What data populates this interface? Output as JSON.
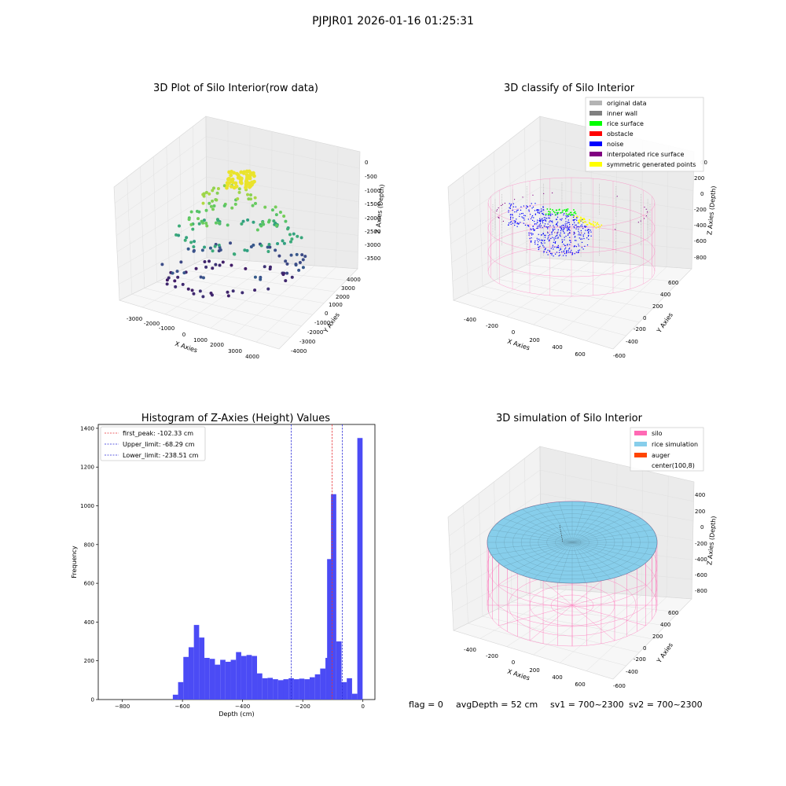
{
  "figure_title": "PJPJR01 2026-01-16 01:25:31",
  "status": {
    "flag": "flag = 0",
    "avg_depth": "avgDepth = 52 cm",
    "sv1": "sv1 = 700~2300",
    "sv2": "sv2 = 700~2300"
  },
  "colors": {
    "histogram_bar": "#4b4bf5",
    "first_peak_line": "#e8343a",
    "limit_lines": "#2f2fd9",
    "silo": "#ff69b4",
    "rice_simulation": "#87ceeb",
    "auger": "#ff4500",
    "original_data": "#b4b4b4",
    "inner_wall": "#808080",
    "rice_surface": "#00ff00",
    "obstacle": "#ff0000",
    "noise": "#0000ff",
    "interpolated_rice_surface": "#800080",
    "symmetric_generated_points": "#ffff00"
  },
  "chart_data": [
    {
      "type": "scatter",
      "title": "3D Plot of Silo Interior(row data)",
      "xlabel": "X Axies",
      "ylabel": "Y Axies",
      "zlabel": "Z Axies (Depth)",
      "x_ticks": [
        "-3000",
        "-2000",
        "-1000",
        "0",
        "1000",
        "2000",
        "3000",
        "4000"
      ],
      "y_ticks": [
        "-4000",
        "-3000",
        "-2000",
        "-1000",
        "0",
        "1000",
        "2000",
        "3000",
        "4000"
      ],
      "z_ticks": [
        "0",
        "-500",
        "-1000",
        "-1500",
        "-2000",
        "-2500",
        "-3000",
        "-3500"
      ]
    },
    {
      "type": "scatter",
      "title": "3D classify of Silo Interior",
      "xlabel": "X Axies",
      "ylabel": "Y Axies",
      "zlabel": "Z Axies (Depth)",
      "x_ticks": [
        "-400",
        "-200",
        "0",
        "200",
        "400",
        "600"
      ],
      "y_ticks": [
        "-600",
        "-400",
        "-200",
        "0",
        "200",
        "400",
        "600"
      ],
      "z_ticks": [
        "200",
        "0",
        "-200",
        "-400",
        "-600",
        "-800"
      ],
      "z_top_tick_partial": "00",
      "legend": [
        "original data",
        "inner wall",
        "rice surface",
        "obstacle",
        "noise",
        "interpolated rice surface",
        "symmetric generated points"
      ]
    },
    {
      "type": "bar",
      "title": "Histogram of Z-Axies (Height) Values",
      "xlabel": "Depth (cm)",
      "ylabel": "Frequency",
      "xlim": [
        -880,
        40
      ],
      "ylim": [
        0,
        1420
      ],
      "x_ticks": [
        -800,
        -600,
        -400,
        -200,
        0
      ],
      "y_ticks": [
        0,
        200,
        400,
        600,
        800,
        1000,
        1200,
        1400
      ],
      "bin_width": 17.5,
      "bins": [
        {
          "x0": -632,
          "v": 25
        },
        {
          "x0": -614.5,
          "v": 90
        },
        {
          "x0": -597,
          "v": 220
        },
        {
          "x0": -579.5,
          "v": 270
        },
        {
          "x0": -562,
          "v": 385
        },
        {
          "x0": -544.5,
          "v": 320
        },
        {
          "x0": -527,
          "v": 215
        },
        {
          "x0": -509.5,
          "v": 210
        },
        {
          "x0": -492,
          "v": 180
        },
        {
          "x0": -474.5,
          "v": 205
        },
        {
          "x0": -457,
          "v": 195
        },
        {
          "x0": -439.5,
          "v": 205
        },
        {
          "x0": -422,
          "v": 245
        },
        {
          "x0": -404.5,
          "v": 225
        },
        {
          "x0": -387,
          "v": 230
        },
        {
          "x0": -369.5,
          "v": 225
        },
        {
          "x0": -352,
          "v": 135
        },
        {
          "x0": -334.5,
          "v": 110
        },
        {
          "x0": -317,
          "v": 112
        },
        {
          "x0": -299.5,
          "v": 105
        },
        {
          "x0": -282,
          "v": 100
        },
        {
          "x0": -264.5,
          "v": 105
        },
        {
          "x0": -247,
          "v": 110
        },
        {
          "x0": -229.5,
          "v": 105
        },
        {
          "x0": -212,
          "v": 108
        },
        {
          "x0": -194.5,
          "v": 105
        },
        {
          "x0": -177,
          "v": 115
        },
        {
          "x0": -159.5,
          "v": 130
        },
        {
          "x0": -142,
          "v": 160
        },
        {
          "x0": -124.5,
          "v": 215
        },
        {
          "x0": -119,
          "v": 725
        },
        {
          "x0": -106,
          "v": 1060
        },
        {
          "x0": -88.5,
          "v": 300
        },
        {
          "x0": -71,
          "v": 90
        },
        {
          "x0": -53.5,
          "v": 110
        },
        {
          "x0": -36,
          "v": 30
        },
        {
          "x0": -18.5,
          "v": 1350
        }
      ],
      "vlines": [
        {
          "x": -102.33,
          "label": "first_peak: -102.33 cm",
          "color": "#e8343a"
        },
        {
          "x": -68.29,
          "label": "Upper_limit: -68.29 cm",
          "color": "#2f2fd9"
        },
        {
          "x": -238.51,
          "label": "Lower_limit: -238.51 cm",
          "color": "#2f2fd9"
        }
      ],
      "legend_position": "top-left"
    },
    {
      "type": "area",
      "title": "3D simulation of Silo Interior",
      "xlabel": "X Axies",
      "ylabel": "Y Axies",
      "zlabel": "Z Axies (Depth)",
      "x_ticks": [
        "-400",
        "-200",
        "0",
        "200",
        "400",
        "600"
      ],
      "y_ticks": [
        "-600",
        "-400",
        "-200",
        "0",
        "200",
        "400",
        "600"
      ],
      "z_ticks": [
        "400",
        "200",
        "0",
        "-200",
        "-400",
        "-600",
        "-800"
      ],
      "legend": [
        "silo",
        "rice simulation",
        "auger",
        "center(100,8)"
      ],
      "legend_position": "top-right"
    }
  ]
}
